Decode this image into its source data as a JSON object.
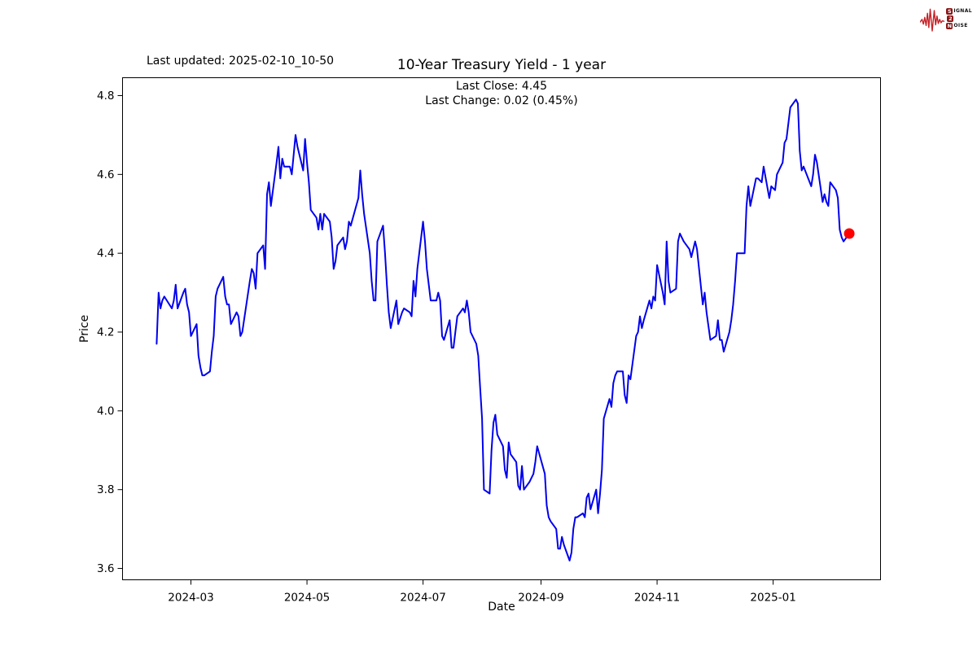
{
  "header": {
    "last_updated": "Last updated: 2025-02-10_10-50",
    "title": "10-Year Treasury Yield - 1 year",
    "subtitle_line1": "Last Close: 4.45",
    "subtitle_line2": "Last Change: 0.02 (0.45%)"
  },
  "logo": {
    "s": "S",
    "ignal": "IGNAL",
    "two": "2",
    "n": "N",
    "oise": "OISE",
    "wave_color": "#c42127",
    "badge_color": "#8c1515"
  },
  "chart_data": {
    "type": "line",
    "title": "10-Year Treasury Yield - 1 year",
    "xlabel": "Date",
    "ylabel": "Price",
    "last_close": 4.45,
    "last_change": "0.02 (0.45%)",
    "last_updated": "2025-02-10_10-50",
    "line_color": "#0000ee",
    "last_point_color": "#ff0000",
    "axis_color": "#000000",
    "grid": false,
    "legend": false,
    "ylim": [
      3.56,
      4.84
    ],
    "y_ticks": [
      "3.6",
      "3.8",
      "4.0",
      "4.2",
      "4.4",
      "4.6",
      "4.8"
    ],
    "x_ticks": [
      {
        "label": "2024-03",
        "date": "2024-03-01"
      },
      {
        "label": "2024-05",
        "date": "2024-05-01"
      },
      {
        "label": "2024-07",
        "date": "2024-07-01"
      },
      {
        "label": "2024-09",
        "date": "2024-09-01"
      },
      {
        "label": "2024-11",
        "date": "2024-11-01"
      },
      {
        "label": "2025-01",
        "date": "2025-01-01"
      }
    ],
    "series": [
      {
        "name": "10-Year Treasury Yield",
        "points": [
          [
            "2024-02-12",
            4.17
          ],
          [
            "2024-02-13",
            4.3
          ],
          [
            "2024-02-14",
            4.26
          ],
          [
            "2024-02-15",
            4.28
          ],
          [
            "2024-02-16",
            4.29
          ],
          [
            "2024-02-20",
            4.26
          ],
          [
            "2024-02-21",
            4.28
          ],
          [
            "2024-02-22",
            4.32
          ],
          [
            "2024-02-23",
            4.26
          ],
          [
            "2024-02-26",
            4.3
          ],
          [
            "2024-02-27",
            4.31
          ],
          [
            "2024-02-28",
            4.27
          ],
          [
            "2024-02-29",
            4.25
          ],
          [
            "2024-03-01",
            4.19
          ],
          [
            "2024-03-04",
            4.22
          ],
          [
            "2024-03-05",
            4.14
          ],
          [
            "2024-03-06",
            4.11
          ],
          [
            "2024-03-07",
            4.09
          ],
          [
            "2024-03-08",
            4.09
          ],
          [
            "2024-03-11",
            4.1
          ],
          [
            "2024-03-12",
            4.15
          ],
          [
            "2024-03-13",
            4.19
          ],
          [
            "2024-03-14",
            4.29
          ],
          [
            "2024-03-15",
            4.31
          ],
          [
            "2024-03-18",
            4.34
          ],
          [
            "2024-03-19",
            4.29
          ],
          [
            "2024-03-20",
            4.27
          ],
          [
            "2024-03-21",
            4.27
          ],
          [
            "2024-03-22",
            4.22
          ],
          [
            "2024-03-25",
            4.25
          ],
          [
            "2024-03-26",
            4.24
          ],
          [
            "2024-03-27",
            4.19
          ],
          [
            "2024-03-28",
            4.2
          ],
          [
            "2024-04-01",
            4.33
          ],
          [
            "2024-04-02",
            4.36
          ],
          [
            "2024-04-03",
            4.35
          ],
          [
            "2024-04-04",
            4.31
          ],
          [
            "2024-04-05",
            4.4
          ],
          [
            "2024-04-08",
            4.42
          ],
          [
            "2024-04-09",
            4.36
          ],
          [
            "2024-04-10",
            4.55
          ],
          [
            "2024-04-11",
            4.58
          ],
          [
            "2024-04-12",
            4.52
          ],
          [
            "2024-04-15",
            4.63
          ],
          [
            "2024-04-16",
            4.67
          ],
          [
            "2024-04-17",
            4.59
          ],
          [
            "2024-04-18",
            4.64
          ],
          [
            "2024-04-19",
            4.62
          ],
          [
            "2024-04-22",
            4.62
          ],
          [
            "2024-04-23",
            4.6
          ],
          [
            "2024-04-24",
            4.65
          ],
          [
            "2024-04-25",
            4.7
          ],
          [
            "2024-04-26",
            4.67
          ],
          [
            "2024-04-29",
            4.61
          ],
          [
            "2024-04-30",
            4.69
          ],
          [
            "2024-05-01",
            4.63
          ],
          [
            "2024-05-02",
            4.58
          ],
          [
            "2024-05-03",
            4.51
          ],
          [
            "2024-05-06",
            4.49
          ],
          [
            "2024-05-07",
            4.46
          ],
          [
            "2024-05-08",
            4.5
          ],
          [
            "2024-05-09",
            4.46
          ],
          [
            "2024-05-10",
            4.5
          ],
          [
            "2024-05-13",
            4.48
          ],
          [
            "2024-05-14",
            4.44
          ],
          [
            "2024-05-15",
            4.36
          ],
          [
            "2024-05-16",
            4.38
          ],
          [
            "2024-05-17",
            4.42
          ],
          [
            "2024-05-20",
            4.44
          ],
          [
            "2024-05-21",
            4.41
          ],
          [
            "2024-05-22",
            4.43
          ],
          [
            "2024-05-23",
            4.48
          ],
          [
            "2024-05-24",
            4.47
          ],
          [
            "2024-05-28",
            4.54
          ],
          [
            "2024-05-29",
            4.61
          ],
          [
            "2024-05-30",
            4.55
          ],
          [
            "2024-05-31",
            4.5
          ],
          [
            "2024-06-03",
            4.4
          ],
          [
            "2024-06-04",
            4.33
          ],
          [
            "2024-06-05",
            4.28
          ],
          [
            "2024-06-06",
            4.28
          ],
          [
            "2024-06-07",
            4.43
          ],
          [
            "2024-06-10",
            4.47
          ],
          [
            "2024-06-11",
            4.4
          ],
          [
            "2024-06-12",
            4.32
          ],
          [
            "2024-06-13",
            4.25
          ],
          [
            "2024-06-14",
            4.21
          ],
          [
            "2024-06-17",
            4.28
          ],
          [
            "2024-06-18",
            4.22
          ],
          [
            "2024-06-20",
            4.25
          ],
          [
            "2024-06-21",
            4.26
          ],
          [
            "2024-06-24",
            4.25
          ],
          [
            "2024-06-25",
            4.24
          ],
          [
            "2024-06-26",
            4.33
          ],
          [
            "2024-06-27",
            4.29
          ],
          [
            "2024-06-28",
            4.36
          ],
          [
            "2024-07-01",
            4.48
          ],
          [
            "2024-07-02",
            4.43
          ],
          [
            "2024-07-03",
            4.36
          ],
          [
            "2024-07-05",
            4.28
          ],
          [
            "2024-07-08",
            4.28
          ],
          [
            "2024-07-09",
            4.3
          ],
          [
            "2024-07-10",
            4.28
          ],
          [
            "2024-07-11",
            4.19
          ],
          [
            "2024-07-12",
            4.18
          ],
          [
            "2024-07-15",
            4.23
          ],
          [
            "2024-07-16",
            4.16
          ],
          [
            "2024-07-17",
            4.16
          ],
          [
            "2024-07-18",
            4.2
          ],
          [
            "2024-07-19",
            4.24
          ],
          [
            "2024-07-22",
            4.26
          ],
          [
            "2024-07-23",
            4.25
          ],
          [
            "2024-07-24",
            4.28
          ],
          [
            "2024-07-25",
            4.25
          ],
          [
            "2024-07-26",
            4.2
          ],
          [
            "2024-07-29",
            4.17
          ],
          [
            "2024-07-30",
            4.14
          ],
          [
            "2024-07-31",
            4.06
          ],
          [
            "2024-08-01",
            3.98
          ],
          [
            "2024-08-02",
            3.8
          ],
          [
            "2024-08-05",
            3.79
          ],
          [
            "2024-08-06",
            3.9
          ],
          [
            "2024-08-07",
            3.97
          ],
          [
            "2024-08-08",
            3.99
          ],
          [
            "2024-08-09",
            3.94
          ],
          [
            "2024-08-12",
            3.91
          ],
          [
            "2024-08-13",
            3.85
          ],
          [
            "2024-08-14",
            3.83
          ],
          [
            "2024-08-15",
            3.92
          ],
          [
            "2024-08-16",
            3.89
          ],
          [
            "2024-08-19",
            3.87
          ],
          [
            "2024-08-20",
            3.81
          ],
          [
            "2024-08-21",
            3.8
          ],
          [
            "2024-08-22",
            3.86
          ],
          [
            "2024-08-23",
            3.8
          ],
          [
            "2024-08-26",
            3.82
          ],
          [
            "2024-08-27",
            3.83
          ],
          [
            "2024-08-28",
            3.84
          ],
          [
            "2024-08-29",
            3.87
          ],
          [
            "2024-08-30",
            3.91
          ],
          [
            "2024-09-03",
            3.84
          ],
          [
            "2024-09-04",
            3.76
          ],
          [
            "2024-09-05",
            3.73
          ],
          [
            "2024-09-06",
            3.72
          ],
          [
            "2024-09-09",
            3.7
          ],
          [
            "2024-09-10",
            3.65
          ],
          [
            "2024-09-11",
            3.65
          ],
          [
            "2024-09-12",
            3.68
          ],
          [
            "2024-09-13",
            3.66
          ],
          [
            "2024-09-16",
            3.62
          ],
          [
            "2024-09-17",
            3.64
          ],
          [
            "2024-09-18",
            3.7
          ],
          [
            "2024-09-19",
            3.73
          ],
          [
            "2024-09-20",
            3.73
          ],
          [
            "2024-09-23",
            3.74
          ],
          [
            "2024-09-24",
            3.73
          ],
          [
            "2024-09-25",
            3.78
          ],
          [
            "2024-09-26",
            3.79
          ],
          [
            "2024-09-27",
            3.75
          ],
          [
            "2024-09-30",
            3.8
          ],
          [
            "2024-10-01",
            3.74
          ],
          [
            "2024-10-02",
            3.79
          ],
          [
            "2024-10-03",
            3.85
          ],
          [
            "2024-10-04",
            3.98
          ],
          [
            "2024-10-07",
            4.03
          ],
          [
            "2024-10-08",
            4.01
          ],
          [
            "2024-10-09",
            4.07
          ],
          [
            "2024-10-10",
            4.09
          ],
          [
            "2024-10-11",
            4.1
          ],
          [
            "2024-10-14",
            4.1
          ],
          [
            "2024-10-15",
            4.04
          ],
          [
            "2024-10-16",
            4.02
          ],
          [
            "2024-10-17",
            4.09
          ],
          [
            "2024-10-18",
            4.08
          ],
          [
            "2024-10-21",
            4.19
          ],
          [
            "2024-10-22",
            4.2
          ],
          [
            "2024-10-23",
            4.24
          ],
          [
            "2024-10-24",
            4.21
          ],
          [
            "2024-10-25",
            4.23
          ],
          [
            "2024-10-28",
            4.28
          ],
          [
            "2024-10-29",
            4.26
          ],
          [
            "2024-10-30",
            4.29
          ],
          [
            "2024-10-31",
            4.28
          ],
          [
            "2024-11-01",
            4.37
          ],
          [
            "2024-11-04",
            4.3
          ],
          [
            "2024-11-05",
            4.27
          ],
          [
            "2024-11-06",
            4.43
          ],
          [
            "2024-11-07",
            4.33
          ],
          [
            "2024-11-08",
            4.3
          ],
          [
            "2024-11-11",
            4.31
          ],
          [
            "2024-11-12",
            4.43
          ],
          [
            "2024-11-13",
            4.45
          ],
          [
            "2024-11-14",
            4.44
          ],
          [
            "2024-11-15",
            4.43
          ],
          [
            "2024-11-18",
            4.41
          ],
          [
            "2024-11-19",
            4.39
          ],
          [
            "2024-11-20",
            4.41
          ],
          [
            "2024-11-21",
            4.43
          ],
          [
            "2024-11-22",
            4.41
          ],
          [
            "2024-11-25",
            4.27
          ],
          [
            "2024-11-26",
            4.3
          ],
          [
            "2024-11-27",
            4.25
          ],
          [
            "2024-11-29",
            4.18
          ],
          [
            "2024-12-02",
            4.19
          ],
          [
            "2024-12-03",
            4.23
          ],
          [
            "2024-12-04",
            4.18
          ],
          [
            "2024-12-05",
            4.18
          ],
          [
            "2024-12-06",
            4.15
          ],
          [
            "2024-12-09",
            4.2
          ],
          [
            "2024-12-10",
            4.23
          ],
          [
            "2024-12-11",
            4.27
          ],
          [
            "2024-12-12",
            4.33
          ],
          [
            "2024-12-13",
            4.4
          ],
          [
            "2024-12-16",
            4.4
          ],
          [
            "2024-12-17",
            4.4
          ],
          [
            "2024-12-18",
            4.52
          ],
          [
            "2024-12-19",
            4.57
          ],
          [
            "2024-12-20",
            4.52
          ],
          [
            "2024-12-23",
            4.59
          ],
          [
            "2024-12-24",
            4.59
          ],
          [
            "2024-12-26",
            4.58
          ],
          [
            "2024-12-27",
            4.62
          ],
          [
            "2024-12-30",
            4.54
          ],
          [
            "2024-12-31",
            4.57
          ],
          [
            "2025-01-02",
            4.56
          ],
          [
            "2025-01-03",
            4.6
          ],
          [
            "2025-01-06",
            4.63
          ],
          [
            "2025-01-07",
            4.68
          ],
          [
            "2025-01-08",
            4.69
          ],
          [
            "2025-01-10",
            4.77
          ],
          [
            "2025-01-13",
            4.79
          ],
          [
            "2025-01-14",
            4.78
          ],
          [
            "2025-01-15",
            4.66
          ],
          [
            "2025-01-16",
            4.61
          ],
          [
            "2025-01-17",
            4.62
          ],
          [
            "2025-01-21",
            4.57
          ],
          [
            "2025-01-22",
            4.6
          ],
          [
            "2025-01-23",
            4.65
          ],
          [
            "2025-01-24",
            4.63
          ],
          [
            "2025-01-27",
            4.53
          ],
          [
            "2025-01-28",
            4.55
          ],
          [
            "2025-01-29",
            4.53
          ],
          [
            "2025-01-30",
            4.52
          ],
          [
            "2025-01-31",
            4.58
          ],
          [
            "2025-02-03",
            4.56
          ],
          [
            "2025-02-04",
            4.54
          ],
          [
            "2025-02-05",
            4.46
          ],
          [
            "2025-02-06",
            4.44
          ],
          [
            "2025-02-07",
            4.43
          ],
          [
            "2025-02-10",
            4.45
          ]
        ]
      }
    ]
  }
}
